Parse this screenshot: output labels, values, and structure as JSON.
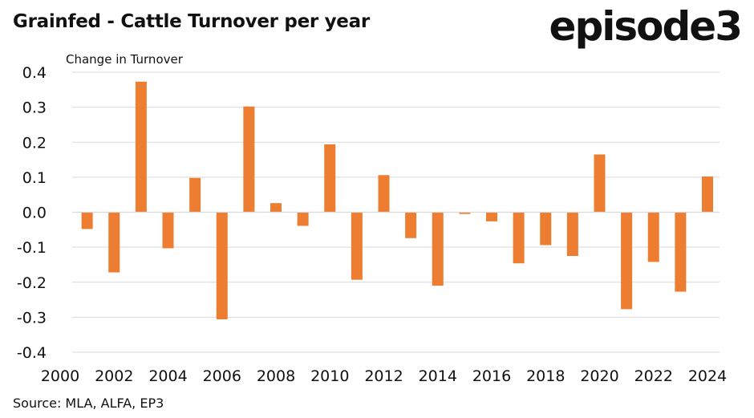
{
  "title": "Grainfed - Cattle Turnover per year",
  "logo_text": "episode3",
  "source": "Source: MLA, ALFA, EP3",
  "chart_data": {
    "type": "bar",
    "ylabel": "Change in Turnover",
    "ylim": [
      -0.4,
      0.4
    ],
    "yticks": [
      0.4,
      0.3,
      0.2,
      0.1,
      0.0,
      -0.1,
      -0.2,
      -0.3,
      -0.4
    ],
    "ytick_labels": [
      "0.4",
      "0.3",
      "0.2",
      "0.1",
      "0.0",
      "-0.1",
      "-0.2",
      "-0.3",
      "-0.4"
    ],
    "xlim": [
      2000,
      2024
    ],
    "xtick_labels": [
      "2000",
      "2002",
      "2004",
      "2006",
      "2008",
      "2010",
      "2012",
      "2014",
      "2016",
      "2018",
      "2020",
      "2022",
      "2024"
    ],
    "grid": true,
    "bar_color": "#ED7D31",
    "categories": [
      2001,
      2002,
      2003,
      2004,
      2005,
      2006,
      2007,
      2008,
      2009,
      2010,
      2011,
      2012,
      2013,
      2014,
      2015,
      2016,
      2017,
      2018,
      2019,
      2020,
      2021,
      2022,
      2023,
      2024
    ],
    "values": [
      -0.048,
      -0.172,
      0.373,
      -0.103,
      0.098,
      -0.306,
      0.302,
      0.026,
      -0.039,
      0.194,
      -0.193,
      0.106,
      -0.074,
      -0.21,
      -0.005,
      -0.026,
      -0.146,
      -0.094,
      -0.125,
      0.165,
      -0.277,
      -0.142,
      -0.227,
      0.102
    ]
  }
}
